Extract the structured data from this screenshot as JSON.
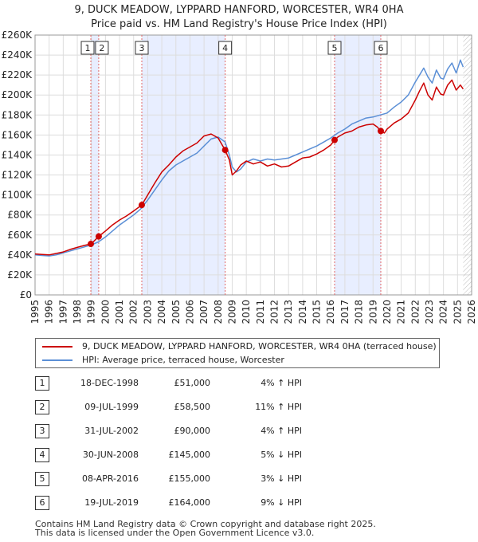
{
  "title": {
    "line1": "9, DUCK MEADOW, LYPPARD HANFORD, WORCESTER, WR4 0HA",
    "line2": "Price paid vs. HM Land Registry's House Price Index (HPI)"
  },
  "colors": {
    "property": "#cc0000",
    "hpi": "#5b8fd6",
    "shade": "#e8eeff",
    "grid": "#dddddd"
  },
  "chart_data": {
    "type": "line",
    "title": "Price paid vs. HM Land Registry's House Price Index (HPI)",
    "xlim": [
      1995,
      2026
    ],
    "ylim": [
      0,
      260000
    ],
    "x_ticks": [
      1995,
      1996,
      1997,
      1998,
      1999,
      2000,
      2001,
      2002,
      2003,
      2004,
      2005,
      2006,
      2007,
      2008,
      2009,
      2010,
      2011,
      2012,
      2013,
      2014,
      2015,
      2016,
      2017,
      2018,
      2019,
      2020,
      2021,
      2022,
      2023,
      2024,
      2025,
      2026
    ],
    "y_ticks": [
      0,
      20000,
      40000,
      60000,
      80000,
      100000,
      120000,
      140000,
      160000,
      180000,
      200000,
      220000,
      240000,
      260000
    ],
    "y_tick_labels": [
      "£0",
      "£20K",
      "£40K",
      "£60K",
      "£80K",
      "£100K",
      "£120K",
      "£140K",
      "£160K",
      "£180K",
      "£200K",
      "£220K",
      "£240K",
      "£260K"
    ],
    "shaded_spans": [
      [
        1998.96,
        1999.52
      ],
      [
        2002.58,
        2008.5
      ],
      [
        2016.27,
        2019.55
      ]
    ],
    "future_hatch_from": 2025.4,
    "series": [
      {
        "name": "9, DUCK MEADOW, LYPPARD HANFORD, WORCESTER, WR4 0HA (terraced house)",
        "x": [
          1995.0,
          1995.5,
          1996.0,
          1996.5,
          1997.0,
          1997.5,
          1998.0,
          1998.5,
          1998.96,
          1999.2,
          1999.52,
          2000.0,
          2000.5,
          2001.0,
          2001.5,
          2002.0,
          2002.58,
          2003.0,
          2003.5,
          2004.0,
          2004.5,
          2005.0,
          2005.5,
          2006.0,
          2006.5,
          2007.0,
          2007.5,
          2008.0,
          2008.5,
          2008.8,
          2009.0,
          2009.3,
          2009.6,
          2010.0,
          2010.5,
          2011.0,
          2011.5,
          2012.0,
          2012.5,
          2013.0,
          2013.5,
          2014.0,
          2014.5,
          2015.0,
          2015.5,
          2016.0,
          2016.27,
          2016.5,
          2017.0,
          2017.5,
          2018.0,
          2018.5,
          2019.0,
          2019.3,
          2019.55,
          2019.8,
          2020.0,
          2020.5,
          2021.0,
          2021.5,
          2022.0,
          2022.3,
          2022.6,
          2022.9,
          2023.2,
          2023.5,
          2023.8,
          2024.0,
          2024.3,
          2024.6,
          2024.9,
          2025.2,
          2025.4
        ],
        "values": [
          41000,
          40500,
          40000,
          41500,
          43000,
          45500,
          47500,
          49500,
          51000,
          54000,
          58500,
          64000,
          70000,
          75000,
          79000,
          84000,
          90000,
          100000,
          112000,
          123000,
          130000,
          138000,
          144000,
          148000,
          152000,
          159000,
          161000,
          157000,
          145000,
          135000,
          120000,
          124000,
          130000,
          134000,
          131000,
          133000,
          129000,
          131000,
          128000,
          129000,
          133000,
          137000,
          138000,
          141000,
          145000,
          150000,
          155000,
          158000,
          162000,
          164000,
          168000,
          170000,
          171000,
          168000,
          164000,
          162000,
          166000,
          172000,
          176000,
          182000,
          195000,
          204000,
          212000,
          200000,
          195000,
          208000,
          201000,
          200000,
          210000,
          215000,
          205000,
          210000,
          206000
        ]
      },
      {
        "name": "HPI: Average price, terraced house, Worcester",
        "x": [
          1995.0,
          1995.5,
          1996.0,
          1996.5,
          1997.0,
          1997.5,
          1998.0,
          1998.5,
          1999.0,
          1999.5,
          2000.0,
          2000.5,
          2001.0,
          2001.5,
          2002.0,
          2002.5,
          2003.0,
          2003.5,
          2004.0,
          2004.5,
          2005.0,
          2005.5,
          2006.0,
          2006.5,
          2007.0,
          2007.5,
          2008.0,
          2008.5,
          2008.8,
          2009.0,
          2009.3,
          2009.6,
          2010.0,
          2010.5,
          2011.0,
          2011.5,
          2012.0,
          2012.5,
          2013.0,
          2013.5,
          2014.0,
          2014.5,
          2015.0,
          2015.5,
          2016.0,
          2016.5,
          2017.0,
          2017.5,
          2018.0,
          2018.5,
          2019.0,
          2019.5,
          2020.0,
          2020.5,
          2021.0,
          2021.5,
          2022.0,
          2022.3,
          2022.6,
          2022.9,
          2023.2,
          2023.5,
          2023.8,
          2024.0,
          2024.3,
          2024.6,
          2024.9,
          2025.2,
          2025.4
        ],
        "values": [
          40000,
          39500,
          39000,
          40000,
          42000,
          44000,
          46000,
          48000,
          50000,
          53000,
          58000,
          64000,
          70000,
          75000,
          80000,
          86000,
          95000,
          105000,
          115000,
          124000,
          130000,
          134000,
          138000,
          142000,
          149000,
          156000,
          158000,
          153000,
          140000,
          128000,
          123000,
          126000,
          133000,
          136000,
          134000,
          136000,
          135000,
          136000,
          137000,
          140000,
          143000,
          146000,
          149000,
          153000,
          157000,
          162000,
          166000,
          171000,
          174000,
          177000,
          178000,
          180000,
          182000,
          188000,
          193000,
          200000,
          213000,
          220000,
          227000,
          218000,
          212000,
          225000,
          217000,
          216000,
          226000,
          232000,
          222000,
          235000,
          228000
        ]
      }
    ],
    "sale_markers": [
      {
        "label": "1",
        "x": 1998.96,
        "y": 51000
      },
      {
        "label": "2",
        "x": 1999.52,
        "y": 58500
      },
      {
        "label": "3",
        "x": 2002.58,
        "y": 90000
      },
      {
        "label": "4",
        "x": 2008.5,
        "y": 145000
      },
      {
        "label": "5",
        "x": 2016.27,
        "y": 155000
      },
      {
        "label": "6",
        "x": 2019.55,
        "y": 164000
      }
    ]
  },
  "legend": {
    "property": "9, DUCK MEADOW, LYPPARD HANFORD, WORCESTER, WR4 0HA (terraced house)",
    "hpi": "HPI: Average price, terraced house, Worcester"
  },
  "sales": [
    {
      "num": "1",
      "date": "18-DEC-1998",
      "price": "£51,000",
      "hpi": "4% ↑ HPI"
    },
    {
      "num": "2",
      "date": "09-JUL-1999",
      "price": "£58,500",
      "hpi": "11% ↑ HPI"
    },
    {
      "num": "3",
      "date": "31-JUL-2002",
      "price": "£90,000",
      "hpi": "4% ↑ HPI"
    },
    {
      "num": "4",
      "date": "30-JUN-2008",
      "price": "£145,000",
      "hpi": "5% ↓ HPI"
    },
    {
      "num": "5",
      "date": "08-APR-2016",
      "price": "£155,000",
      "hpi": "3% ↓ HPI"
    },
    {
      "num": "6",
      "date": "19-JUL-2019",
      "price": "£164,000",
      "hpi": "9% ↓ HPI"
    }
  ],
  "footer": {
    "line1": "Contains HM Land Registry data © Crown copyright and database right 2025.",
    "line2": "This data is licensed under the Open Government Licence v3.0."
  }
}
